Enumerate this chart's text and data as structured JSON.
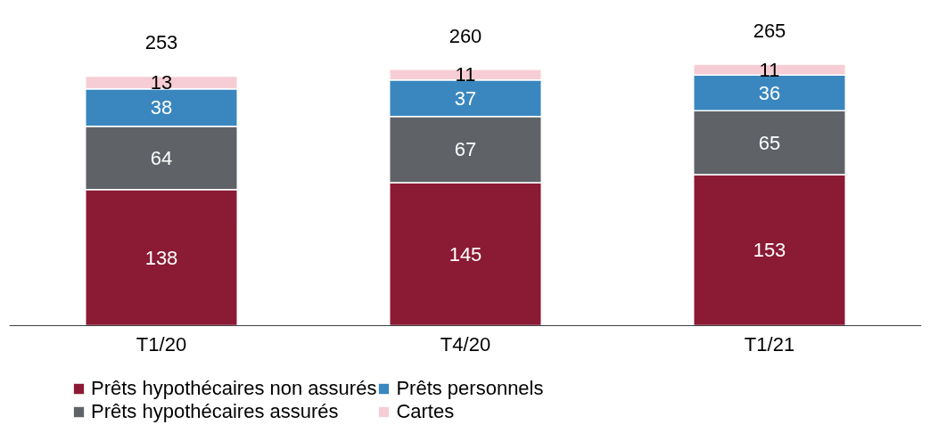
{
  "chart_data": {
    "type": "bar",
    "stacked": true,
    "data_labels": true,
    "grid": false,
    "legend": "bottom",
    "categories": [
      "T1/20",
      "T4/20",
      "T1/21"
    ],
    "series": [
      {
        "name": "Prêts hypothécaires non assurés",
        "color": "#8b1a35",
        "values": [
          138,
          145,
          153
        ]
      },
      {
        "name": "Prêts hypothécaires assurés",
        "color": "#5f6368",
        "values": [
          64,
          67,
          65
        ]
      },
      {
        "name": "Prêts personnels",
        "color": "#3a87c0",
        "values": [
          38,
          37,
          36
        ]
      },
      {
        "name": "Cartes",
        "color": "#f6cdd5",
        "values": [
          13,
          11,
          11
        ]
      }
    ],
    "totals": [
      "253",
      "260",
      "265"
    ]
  }
}
